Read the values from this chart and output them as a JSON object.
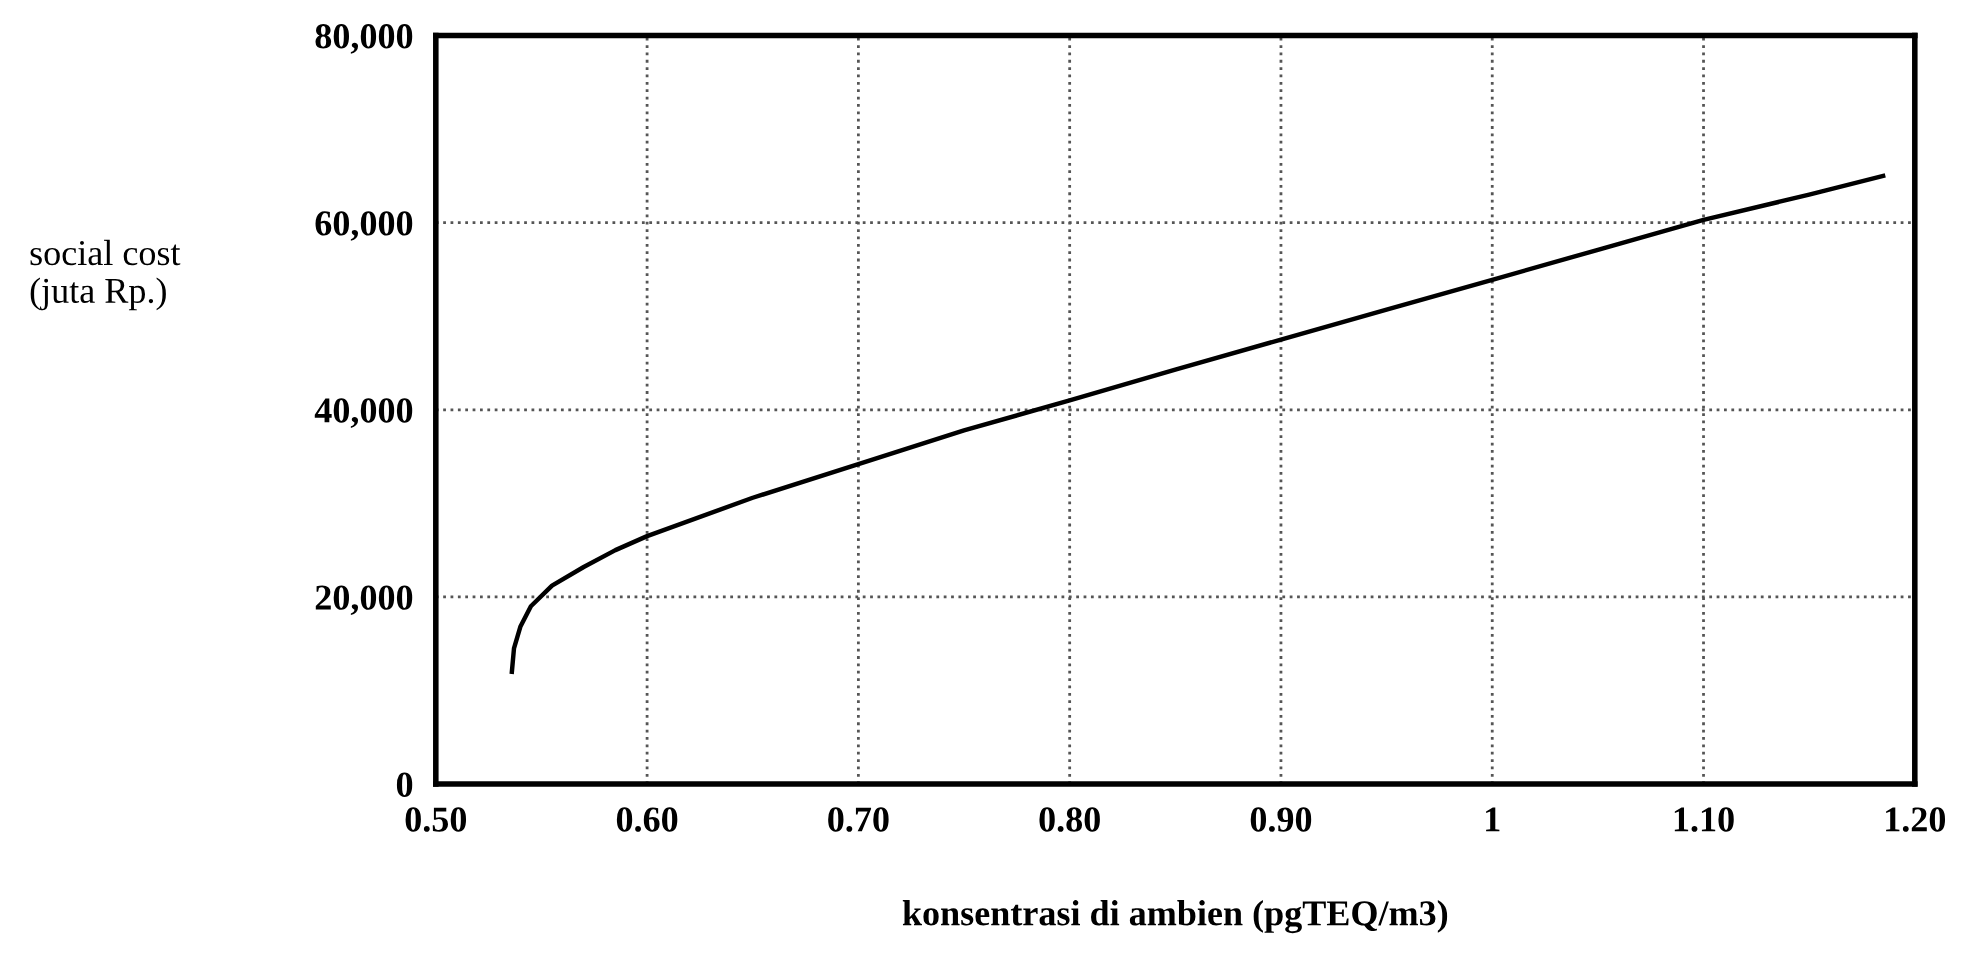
{
  "chart_data": {
    "type": "line",
    "xlabel": "konsentrasi di ambien (pgTEQ/m3)",
    "ylabel": "social cost\n(juta Rp.)",
    "series": [
      {
        "color": "#000000",
        "x": [
          0.536,
          0.537,
          0.54,
          0.545,
          0.555,
          0.57,
          0.585,
          0.6,
          0.65,
          0.7,
          0.75,
          0.8,
          0.85,
          0.9,
          0.95,
          1.0,
          1.05,
          1.1,
          1.15,
          1.185
        ],
        "values": [
          12000,
          14500,
          16800,
          19000,
          21200,
          23200,
          25000,
          26500,
          30600,
          34200,
          37800,
          41000,
          44300,
          47500,
          50700,
          53900,
          57100,
          60300,
          63000,
          65000
        ]
      }
    ],
    "xlim": [
      0.5,
      1.2
    ],
    "xticks": [
      {
        "value": 0.5,
        "label": "0.50"
      },
      {
        "value": 0.6,
        "label": "0.60"
      },
      {
        "value": 0.7,
        "label": "0.70"
      },
      {
        "value": 0.8,
        "label": "0.80"
      },
      {
        "value": 0.9,
        "label": "0.90"
      },
      1,
      {
        "value": 1.1,
        "label": "1.10"
      },
      {
        "value": 1.2,
        "label": "1.20"
      }
    ],
    "ylim": [
      0,
      80000
    ],
    "yticks": [
      0,
      {
        "value": 20000,
        "label": "20,000"
      },
      {
        "value": 40000,
        "label": "40,000"
      },
      {
        "value": 60000,
        "label": "60,000"
      },
      {
        "value": 80000,
        "label": "80,000"
      }
    ],
    "grid": true,
    "line_style": "solid",
    "marker": "none"
  }
}
